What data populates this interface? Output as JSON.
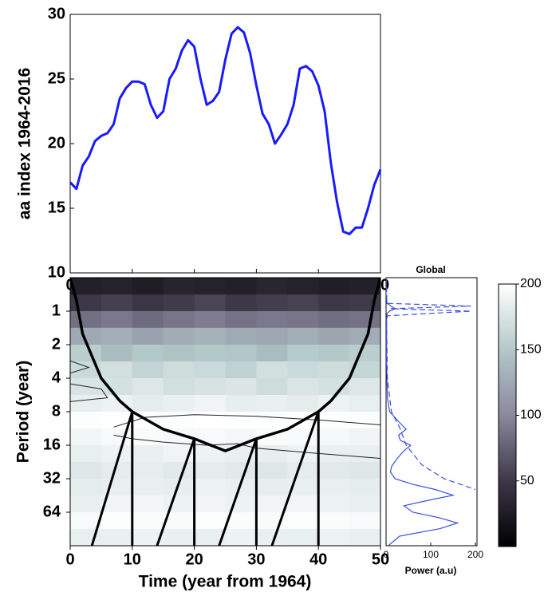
{
  "chart_data": [
    {
      "type": "line",
      "ylabel": "aa index 1964-2016",
      "x": [
        0,
        1,
        2,
        3,
        4,
        5,
        6,
        7,
        8,
        9,
        10,
        11,
        12,
        13,
        14,
        15,
        16,
        17,
        18,
        19,
        20,
        21,
        22,
        23,
        24,
        25,
        26,
        27,
        28,
        29,
        30,
        31,
        32,
        33,
        34,
        35,
        36,
        37,
        38,
        39,
        40,
        41,
        42,
        43,
        44,
        45,
        46,
        47,
        48,
        49,
        50
      ],
      "series": [
        {
          "color": "#1a1aff",
          "values": [
            17.0,
            16.5,
            18.3,
            19.0,
            20.2,
            20.6,
            20.8,
            21.5,
            23.5,
            24.3,
            24.8,
            24.8,
            24.6,
            23.0,
            22.0,
            22.5,
            25.0,
            25.8,
            27.2,
            28.0,
            27.5,
            25.0,
            23.0,
            23.3,
            24.0,
            26.5,
            28.5,
            29.0,
            28.6,
            27.0,
            24.5,
            22.3,
            21.5,
            20.0,
            20.7,
            21.5,
            23.0,
            25.8,
            26.0,
            25.6,
            24.5,
            22.5,
            18.5,
            15.5,
            13.2,
            13.0,
            13.5,
            13.5,
            15.0,
            16.8,
            18.0
          ]
        }
      ],
      "xlim": [
        0,
        50
      ],
      "xticks": [
        0,
        10,
        20,
        30,
        40,
        50
      ],
      "ylim": [
        10,
        30
      ],
      "yticks": [
        10,
        15,
        20,
        25,
        30
      ]
    },
    {
      "type": "heatmap",
      "xlabel": "Time (year from 1964)",
      "ylabel": "Period (year)",
      "xedges": [
        0,
        5,
        10,
        15,
        20,
        25,
        30,
        35,
        40,
        45,
        50
      ],
      "period_edges": [
        0.5,
        0.71,
        1,
        1.41,
        2,
        2.83,
        4,
        5.66,
        8,
        11.3,
        16,
        22.6,
        32,
        45.3,
        64,
        90.5,
        128
      ],
      "power": [
        [
          28,
          30,
          26,
          32,
          30,
          28,
          34,
          30,
          27,
          29
        ],
        [
          50,
          55,
          48,
          52,
          58,
          50,
          54,
          56,
          50,
          52
        ],
        [
          85,
          90,
          82,
          88,
          92,
          86,
          90,
          88,
          84,
          86
        ],
        [
          125,
          130,
          120,
          128,
          132,
          126,
          124,
          130,
          122,
          128
        ],
        [
          155,
          140,
          150,
          145,
          150,
          148,
          140,
          152,
          150,
          155
        ],
        [
          165,
          170,
          160,
          168,
          165,
          158,
          170,
          165,
          168,
          162
        ],
        [
          175,
          172,
          178,
          170,
          174,
          176,
          168,
          175,
          172,
          178
        ],
        [
          185,
          188,
          182,
          186,
          190,
          184,
          186,
          182,
          188,
          185
        ],
        [
          198,
          200,
          199,
          198,
          200,
          199,
          198,
          200,
          199,
          198
        ],
        [
          192,
          195,
          196,
          194,
          195,
          193,
          196,
          195,
          194,
          190
        ],
        [
          185,
          188,
          186,
          190,
          188,
          186,
          184,
          188,
          186,
          185
        ],
        [
          178,
          182,
          184,
          180,
          182,
          180,
          178,
          182,
          180,
          178
        ],
        [
          182,
          185,
          186,
          184,
          188,
          186,
          184,
          185,
          186,
          183
        ],
        [
          186,
          190,
          192,
          188,
          190,
          188,
          190,
          192,
          188,
          186
        ],
        [
          195,
          198,
          197,
          196,
          198,
          197,
          196,
          198,
          197,
          195
        ],
        [
          185,
          186,
          188,
          186,
          185,
          188,
          186,
          185,
          188,
          186
        ]
      ],
      "xlim": [
        0,
        50
      ],
      "xticks": [
        0,
        10,
        20,
        30,
        40,
        50
      ],
      "ylim": [
        0.5,
        128
      ],
      "yticks": [
        1,
        2,
        4,
        8,
        16,
        32,
        64
      ],
      "log_y": true,
      "y_reversed": true,
      "clim": [
        0,
        200
      ],
      "cticks": [
        50,
        100,
        150,
        200
      ],
      "colormap": [
        "#000000",
        "#3d3848",
        "#8b889e",
        "#b3c9c9",
        "#ffffff"
      ],
      "coi": {
        "x": [
          0,
          1,
          2,
          5,
          8,
          10,
          15,
          20,
          25,
          30,
          35,
          40,
          42,
          45,
          48,
          49,
          50
        ],
        "period": [
          0.5,
          0.8,
          1.6,
          4,
          6.4,
          8,
          11.5,
          14,
          18,
          14,
          11.5,
          8,
          6.4,
          4,
          1.6,
          0.8,
          0.5
        ]
      },
      "lines": [
        {
          "x": [
            3.5,
            10,
            10
          ],
          "period": [
            128,
            8,
            128
          ]
        },
        {
          "x": [
            14,
            20,
            20
          ],
          "period": [
            128,
            14,
            128
          ]
        },
        {
          "x": [
            24,
            30,
            30
          ],
          "period": [
            128,
            14,
            128
          ]
        },
        {
          "x": [
            32.5,
            40,
            40
          ],
          "period": [
            128,
            8,
            128
          ]
        }
      ],
      "contours": [
        {
          "x": [
            7,
            12,
            20,
            30,
            40,
            50
          ],
          "period": [
            11,
            9,
            8.5,
            8.8,
            9.5,
            10.5
          ]
        },
        {
          "x": [
            7,
            10,
            15,
            22,
            27,
            30,
            40,
            50
          ],
          "period": [
            13,
            14,
            15,
            16,
            15.5,
            17,
            19,
            21
          ]
        },
        {
          "x": [
            0,
            3,
            0
          ],
          "period": [
            2.8,
            3.2,
            3.6
          ]
        },
        {
          "x": [
            0,
            5,
            6,
            0
          ],
          "period": [
            4.5,
            5,
            6,
            6.5
          ]
        }
      ]
    },
    {
      "type": "global",
      "title": "Global",
      "xlabel": "Power (a.u)",
      "xlim": [
        0,
        200
      ],
      "xticks": [
        0,
        100,
        200
      ],
      "ylim": [
        0.5,
        128
      ],
      "log_y": true,
      "y_reversed": true,
      "series": [
        {
          "color": "#3b4fe0",
          "dashed": false,
          "periods": [
            0.5,
            0.7,
            0.85,
            0.95,
            1,
            1.05,
            1.2,
            1.5,
            2,
            3,
            4,
            6,
            8,
            10,
            11.5,
            13,
            14.5,
            16,
            18,
            21,
            25,
            28,
            32,
            36,
            40,
            45,
            50,
            56,
            64,
            72,
            80,
            90,
            105,
            128
          ],
          "values": [
            0,
            0,
            2,
            20,
            8,
            2,
            1,
            1,
            1,
            1,
            2,
            3,
            8,
            30,
            45,
            28,
            32,
            55,
            40,
            25,
            12,
            10,
            20,
            60,
            110,
            150,
            95,
            40,
            60,
            120,
            160,
            120,
            30,
            5
          ]
        },
        {
          "color": "#3b4fe0",
          "dashed": true,
          "periods": [
            0.5,
            0.85,
            0.9,
            0.95,
            1,
            1.1,
            1.3,
            2,
            4,
            8,
            11,
            16,
            24,
            32,
            40
          ],
          "values": [
            0,
            2,
            190,
            10,
            190,
            3,
            1,
            2,
            3,
            12,
            30,
            45,
            80,
            130,
            200
          ]
        }
      ]
    }
  ]
}
